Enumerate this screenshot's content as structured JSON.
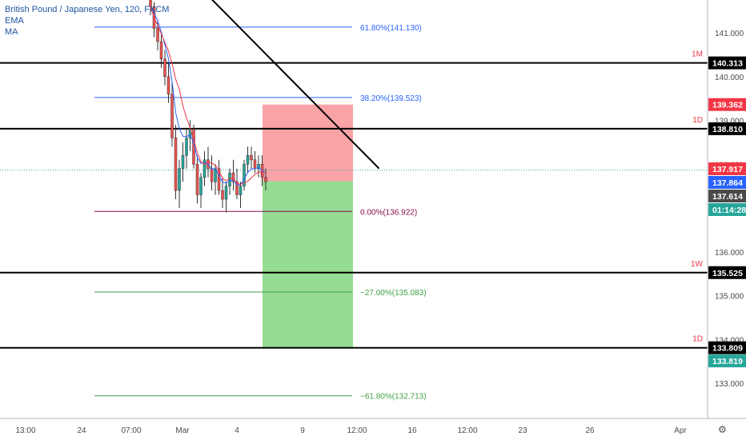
{
  "legend": {
    "title": "British Pound / Japanese Yen, 120, FXCM",
    "indicators": [
      "EMA",
      "MA"
    ]
  },
  "chart_data": {
    "type": "candlestick",
    "ylim": [
      132.0,
      142.0
    ],
    "price_ticks": [
      "133.000",
      "134.000",
      "135.000",
      "136.000",
      "137.000",
      "138.000",
      "139.000",
      "140.000",
      "141.000"
    ],
    "time_ticks": [
      {
        "label": "13:00",
        "x": 0.0
      },
      {
        "label": "24",
        "x": 1.0
      },
      {
        "label": "07:00",
        "x": 2.0
      },
      {
        "label": "Mar",
        "x": 3.0
      },
      {
        "label": "4",
        "x": 4.0
      },
      {
        "label": "9",
        "x": 5.0
      },
      {
        "label": "12:00",
        "x": 6.0
      },
      {
        "label": "16",
        "x": 7.0
      },
      {
        "label": "12:00",
        "x": 8.0
      },
      {
        "label": "23",
        "x": 9.0
      },
      {
        "label": "26",
        "x": 10.0
      },
      {
        "label": "Apr",
        "x": 11.0
      }
    ],
    "horizontal_levels": [
      {
        "price": 140.313,
        "tag": "1M",
        "label": "140.313"
      },
      {
        "price": 138.81,
        "tag": "1D",
        "label": "138.810"
      },
      {
        "price": 135.525,
        "tag": "1W",
        "label": "135.525"
      },
      {
        "price": 133.809,
        "tag": "1D",
        "label": "133.809"
      }
    ],
    "fibonacci": [
      {
        "ratio_label": "61.80%(141.130)",
        "price": 141.13,
        "color": "#2962ff"
      },
      {
        "ratio_label": "38.20%(139.523)",
        "price": 139.523,
        "color": "#2962ff"
      },
      {
        "ratio_label": "0.00%(136.922)",
        "price": 136.922,
        "color": "#880e4f"
      },
      {
        "ratio_label": "−27.00%(135.083)",
        "price": 135.083,
        "color": "#43a047"
      },
      {
        "ratio_label": "−61.80%(132.713)",
        "price": 132.713,
        "color": "#43a047"
      }
    ],
    "position": {
      "entry": 137.614,
      "stop": 139.362,
      "target": 133.819,
      "stop_label": "139.362",
      "target_label": "133.819"
    },
    "price_labels": [
      {
        "label": "137.917",
        "price": 137.917,
        "color": "#f23645"
      },
      {
        "label": "137.864",
        "price": 137.864,
        "color": "#2962ff"
      },
      {
        "label": "137.614",
        "price": 137.614,
        "color": "#4a4a4a"
      }
    ],
    "countdown": "01:14:28",
    "trendline": {
      "from": [
        3.35,
        142.0
      ],
      "to": [
        6.4,
        137.9
      ]
    },
    "candles": [
      [
        141.9,
        142.1,
        141.4,
        141.6
      ],
      [
        141.6,
        141.7,
        140.9,
        141.1
      ],
      [
        141.1,
        141.3,
        140.6,
        140.8
      ],
      [
        140.8,
        141.0,
        140.2,
        140.4
      ],
      [
        140.4,
        140.6,
        139.8,
        140.0
      ],
      [
        140.0,
        140.3,
        139.4,
        139.6
      ],
      [
        139.6,
        139.9,
        138.4,
        138.6
      ],
      [
        138.6,
        138.9,
        137.2,
        137.4
      ],
      [
        137.4,
        138.1,
        137.0,
        137.9
      ],
      [
        137.9,
        138.5,
        137.6,
        138.2
      ],
      [
        138.2,
        138.8,
        137.9,
        138.6
      ],
      [
        138.6,
        139.0,
        138.3,
        138.8
      ],
      [
        138.8,
        138.9,
        137.9,
        138.0
      ],
      [
        138.0,
        138.2,
        137.1,
        137.3
      ],
      [
        137.3,
        137.8,
        137.0,
        137.7
      ],
      [
        137.7,
        138.3,
        137.5,
        138.1
      ],
      [
        138.1,
        138.4,
        137.7,
        137.9
      ],
      [
        137.9,
        138.2,
        137.4,
        137.6
      ],
      [
        137.6,
        138.0,
        137.3,
        137.9
      ],
      [
        137.9,
        138.1,
        137.3,
        137.4
      ],
      [
        137.4,
        137.7,
        137.0,
        137.2
      ],
      [
        137.2,
        137.6,
        136.9,
        137.5
      ],
      [
        137.5,
        137.9,
        137.3,
        137.8
      ],
      [
        137.8,
        138.1,
        137.4,
        137.6
      ],
      [
        137.6,
        137.9,
        137.2,
        137.3
      ],
      [
        137.3,
        137.6,
        137.0,
        137.5
      ],
      [
        137.5,
        138.1,
        137.4,
        138.0
      ],
      [
        138.0,
        138.4,
        137.8,
        138.2
      ],
      [
        138.2,
        138.4,
        137.9,
        138.1
      ],
      [
        138.1,
        138.3,
        137.8,
        137.9
      ],
      [
        137.9,
        138.2,
        137.7,
        138.0
      ],
      [
        138.0,
        138.2,
        137.5,
        137.7
      ],
      [
        137.7,
        137.9,
        137.4,
        137.6
      ]
    ]
  }
}
